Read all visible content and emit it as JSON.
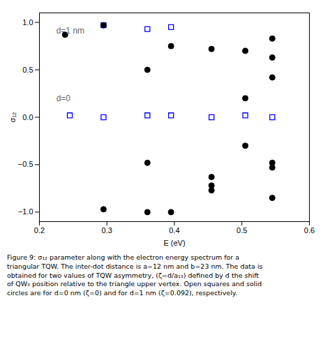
{
  "chart_data": {
    "type": "scatter",
    "xlabel": "E (eV)",
    "ylabel": "σ₁₂",
    "xlim": [
      0.2,
      0.6
    ],
    "ylim": [
      -1.1,
      1.1
    ],
    "xticks": [
      0.2,
      0.3,
      0.4,
      0.5,
      0.6
    ],
    "yticks": [
      {
        "value": -1.0,
        "label": "−1.0"
      },
      {
        "value": -0.5,
        "label": "−0.5"
      },
      {
        "value": 0.0,
        "label": "0.0"
      },
      {
        "value": 0.5,
        "label": "0.5"
      },
      {
        "value": 1.0,
        "label": "1.0"
      }
    ],
    "series": [
      {
        "marker": "square_open",
        "color": "#0000ff",
        "x": [
          0.245,
          0.295,
          0.36,
          0.395,
          0.455,
          0.505,
          0.545
        ],
        "values": [
          0.02,
          0.0,
          0.02,
          0.02,
          0.0,
          0.02,
          0.0
        ]
      },
      {
        "marker": "square_open",
        "color": "#0000ff",
        "x": [
          0.295,
          0.36,
          0.395
        ],
        "values": [
          0.97,
          0.93,
          0.95
        ]
      },
      {
        "marker": "circle",
        "color": "#000000",
        "x": [
          0.238,
          0.295,
          0.295,
          0.36,
          0.36,
          0.36,
          0.395,
          0.395,
          0.455,
          0.455,
          0.455,
          0.455,
          0.505,
          0.505,
          0.505,
          0.545,
          0.545,
          0.545,
          0.545,
          0.545,
          0.545
        ],
        "values": [
          0.87,
          0.97,
          -0.97,
          0.5,
          -0.48,
          -1.0,
          0.75,
          -1.0,
          0.72,
          -0.63,
          -0.72,
          -0.77,
          0.7,
          0.2,
          -0.3,
          0.83,
          0.63,
          0.42,
          -0.48,
          -0.53,
          -0.85
        ]
      }
    ],
    "annotations": [
      {
        "text": "d=1 nm",
        "x": 0.225,
        "y": 0.88,
        "color": "#666666"
      },
      {
        "text": "d=0",
        "x": 0.225,
        "y": 0.17,
        "color": "#666666"
      }
    ],
    "caption": [
      "Figure 9: σ₁₂ parameter along with the electron energy spectrum for a",
      "triangular TQW. The inter-dot distance is a=12 nm and b=23 nm. The data is",
      "obtained for two values of TQW asymmetry, (ζ=d/a₁₃) defined by d the shift",
      "of QW₃ position relative to the triangle upper vertex. Open squares and solid",
      "circles are for d=0 nm (ζ=0) and for d=1 nm (ζ=0.092), respectively."
    ]
  }
}
